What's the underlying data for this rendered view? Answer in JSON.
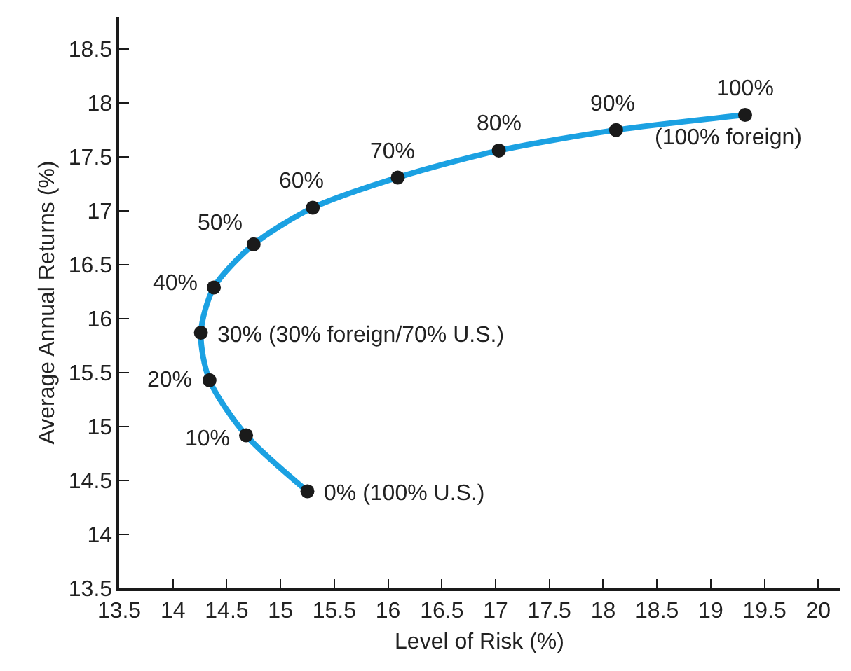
{
  "chart_data": {
    "type": "line",
    "xlabel": "Level of Risk (%)",
    "ylabel": "Average Annual Returns (%)",
    "x": [
      15.25,
      14.68,
      14.34,
      14.26,
      14.38,
      14.75,
      15.3,
      16.09,
      17.03,
      18.12,
      19.32
    ],
    "series": [
      {
        "color": "#1ba1e2",
        "values": [
          14.4,
          14.92,
          15.43,
          15.87,
          16.29,
          16.69,
          17.03,
          17.31,
          17.56,
          17.75,
          17.89
        ]
      }
    ],
    "marker": "circle",
    "xlim": [
      13.5,
      20.2
    ],
    "ylim": [
      13.5,
      18.8
    ],
    "xticks": [
      13.5,
      14,
      14.5,
      15,
      15.5,
      16,
      16.5,
      17,
      17.5,
      18,
      18.5,
      19,
      19.5,
      20
    ],
    "yticks": [
      13.5,
      14,
      14.5,
      15,
      15.5,
      16,
      16.5,
      17,
      17.5,
      18,
      18.5
    ],
    "annotations": [
      {
        "text": "0% (100% U.S.)",
        "x": 15.25,
        "y": 14.4
      },
      {
        "text": "10%",
        "x": 14.68,
        "y": 14.92
      },
      {
        "text": "20%",
        "x": 14.34,
        "y": 15.43
      },
      {
        "text": "30% (30% foreign/70% U.S.)",
        "x": 14.26,
        "y": 15.87
      },
      {
        "text": "40%",
        "x": 14.38,
        "y": 16.29
      },
      {
        "text": "50%",
        "x": 14.75,
        "y": 16.69
      },
      {
        "text": "60%",
        "x": 15.3,
        "y": 17.03
      },
      {
        "text": "70%",
        "x": 16.09,
        "y": 17.31
      },
      {
        "text": "80%",
        "x": 17.03,
        "y": 17.56
      },
      {
        "text": "90%",
        "x": 18.12,
        "y": 17.75
      },
      {
        "text": "100%",
        "x": 19.32,
        "y": 17.89
      },
      {
        "text": "(100% foreign)",
        "x": 19.32,
        "y": 17.89
      }
    ]
  }
}
